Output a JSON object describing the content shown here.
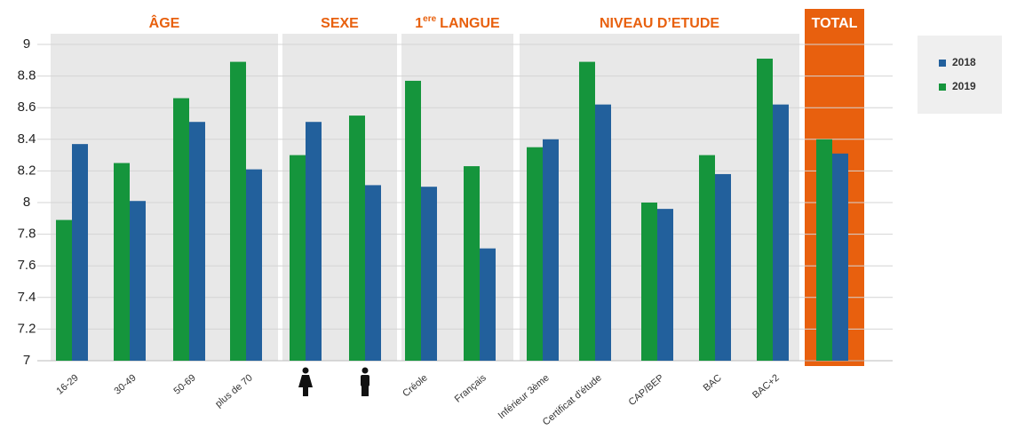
{
  "chart_data": {
    "type": "bar",
    "groups": [
      {
        "label": "ÂGE",
        "count": 4
      },
      {
        "label": "SEXE",
        "count": 2
      },
      {
        "prefix": "1",
        "sup": "ere",
        "label": "LANGUE",
        "count": 2
      },
      {
        "label": "NIVEAU D’ETUDE",
        "count": 5
      },
      {
        "label": "TOTAL",
        "count": 1,
        "highlight_color": "#e8600e"
      }
    ],
    "categories": [
      "16-29",
      "30-49",
      "50-69",
      "plus de 70",
      null,
      null,
      "Créole",
      "Français",
      "Inférieur 3ème",
      "Certificat d’étude",
      "CAP/BEP",
      "BAC",
      "BAC+2",
      null
    ],
    "series": [
      {
        "name": "2018",
        "color": "#22609c",
        "values": [
          8.37,
          8.01,
          8.51,
          8.21,
          8.51,
          8.11,
          8.1,
          7.71,
          8.4,
          8.62,
          7.96,
          8.18,
          8.62,
          8.31
        ]
      },
      {
        "name": "2019",
        "color": "#15953c",
        "values": [
          7.89,
          8.25,
          8.66,
          8.89,
          8.3,
          8.55,
          8.77,
          8.23,
          8.35,
          8.89,
          8.0,
          8.3,
          8.91,
          8.4
        ]
      }
    ],
    "ylim": [
      7,
      9
    ],
    "yticks": [
      7,
      7.2,
      7.4,
      7.6,
      7.8,
      8,
      8.2,
      8.4,
      8.6,
      8.8,
      9
    ],
    "grid": true,
    "legend": "top-right"
  }
}
